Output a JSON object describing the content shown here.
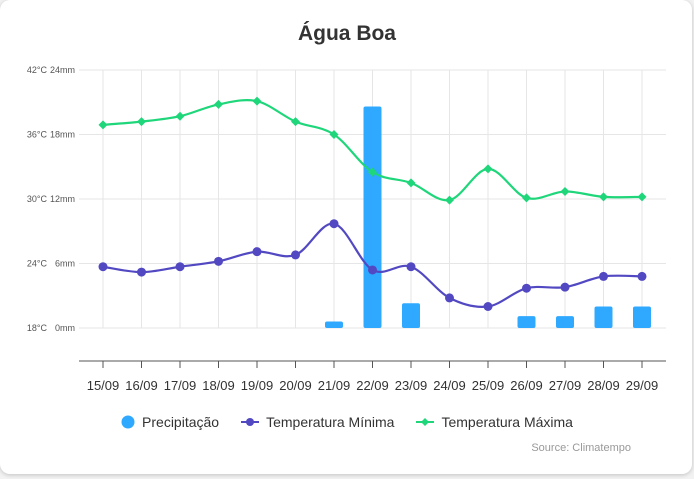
{
  "chart_data": {
    "type": "bar",
    "title": "Água Boa",
    "source": "Source: Climatempo",
    "categories": [
      "15/09",
      "16/09",
      "17/09",
      "18/09",
      "19/09",
      "20/09",
      "21/09",
      "22/09",
      "23/09",
      "24/09",
      "25/09",
      "26/09",
      "27/09",
      "28/09",
      "29/09"
    ],
    "y_left_ticks": [
      "42°C",
      "36°C",
      "30°C",
      "24°C",
      "18°C"
    ],
    "y_right_ticks": [
      "24mm",
      "18mm",
      "12mm",
      "6mm",
      "0mm"
    ],
    "temp_range": [
      18,
      42
    ],
    "precip_range": [
      0,
      24
    ],
    "grid": true,
    "legend_position": "bottom",
    "series": [
      {
        "name": "Precipitação",
        "type": "bar",
        "unit": "mm",
        "color": "#2fa8ff",
        "values": [
          0,
          0,
          0,
          0,
          0,
          0,
          0.6,
          20.6,
          2.3,
          0,
          0,
          1.1,
          1.1,
          2.0,
          2.0
        ]
      },
      {
        "name": "Temperatura Mínima",
        "type": "line",
        "unit": "°C",
        "color": "#5249c2",
        "values": [
          23.7,
          23.2,
          23.7,
          24.2,
          25.1,
          24.8,
          27.7,
          23.4,
          23.7,
          20.8,
          20.0,
          21.7,
          21.8,
          22.8,
          22.8
        ]
      },
      {
        "name": "Temperatura Máxima",
        "type": "line",
        "unit": "°C",
        "color": "#1fd67a",
        "values": [
          36.9,
          37.2,
          37.7,
          38.8,
          39.1,
          37.2,
          36.0,
          32.5,
          31.5,
          29.9,
          32.8,
          30.1,
          30.7,
          30.2,
          30.2
        ]
      }
    ]
  }
}
